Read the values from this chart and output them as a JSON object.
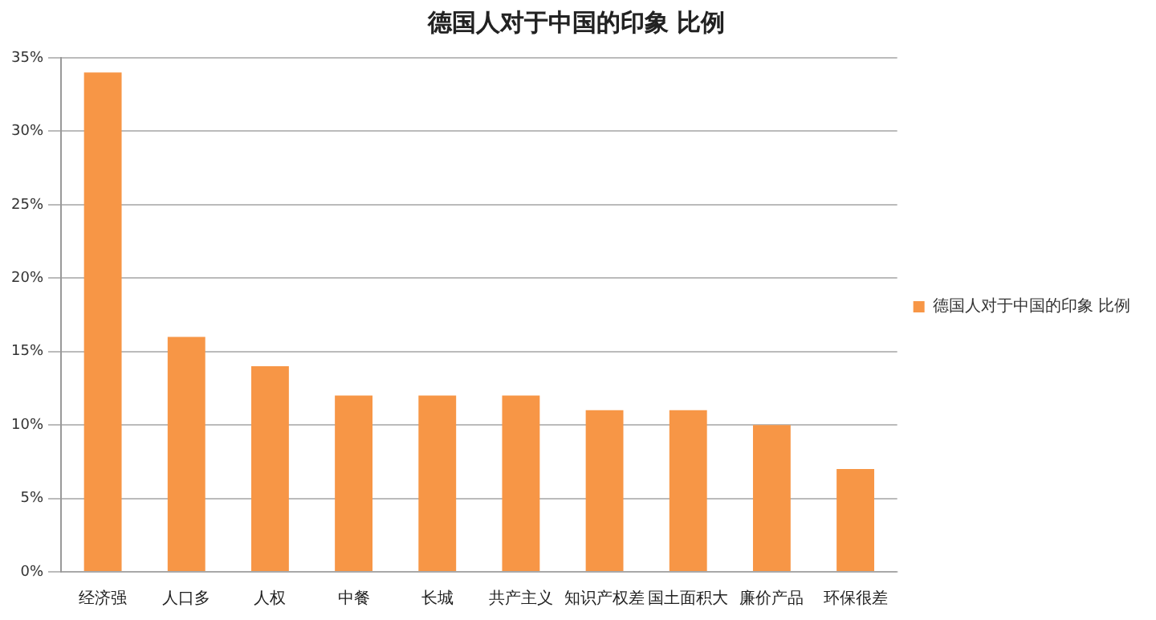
{
  "chart_data": {
    "type": "bar",
    "title": "德国人对于中国的印象 比例",
    "categories": [
      "经济强",
      "人口多",
      "人权",
      "中餐",
      "长城",
      "共产主义",
      "知识产权差",
      "国土面积大",
      "廉价产品",
      "环保很差"
    ],
    "series": [
      {
        "name": "德国人对于中国的印象 比例",
        "color": "#f79646",
        "values": [
          34,
          16,
          14,
          12,
          12,
          12,
          11,
          11,
          10,
          7
        ]
      }
    ],
    "ylim": [
      0,
      35
    ],
    "yticks": [
      {
        "value": 0,
        "label": "0%"
      },
      {
        "value": 5,
        "label": "5%"
      },
      {
        "value": 10,
        "label": "10%"
      },
      {
        "value": 15,
        "label": "15%"
      },
      {
        "value": 20,
        "label": "20%"
      },
      {
        "value": 25,
        "label": "25%"
      },
      {
        "value": 30,
        "label": "30%"
      },
      {
        "value": 35,
        "label": "35%"
      }
    ],
    "grid": "y",
    "legend": "right"
  }
}
